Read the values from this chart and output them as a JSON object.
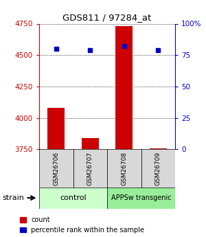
{
  "title": "GDS811 / 97284_at",
  "samples": [
    "GSM26706",
    "GSM26707",
    "GSM26708",
    "GSM26709"
  ],
  "groups": [
    "control",
    "control",
    "APPSw transgenic",
    "APPSw transgenic"
  ],
  "counts": [
    4080,
    3840,
    4730,
    3760
  ],
  "percentiles": [
    80,
    79,
    82,
    79
  ],
  "ylim_left": [
    3750,
    4750
  ],
  "ylim_right": [
    0,
    100
  ],
  "yticks_left": [
    3750,
    4000,
    4250,
    4500,
    4750
  ],
  "ytick_labels_left": [
    "3750",
    "4000",
    "4250",
    "4500",
    "4750"
  ],
  "yticks_right": [
    0,
    25,
    50,
    75,
    100
  ],
  "ytick_labels_right": [
    "0",
    "25",
    "50",
    "75",
    "100%"
  ],
  "bar_color": "#cc0000",
  "dot_color": "#0000cc",
  "group_colors": {
    "control": "#ccffcc",
    "APPSw transgenic": "#99ee99"
  },
  "bar_width": 0.5,
  "background_color": "#ffffff",
  "plot_bg_color": "#ffffff",
  "label_count": "count",
  "label_percentile": "percentile rank within the sample"
}
